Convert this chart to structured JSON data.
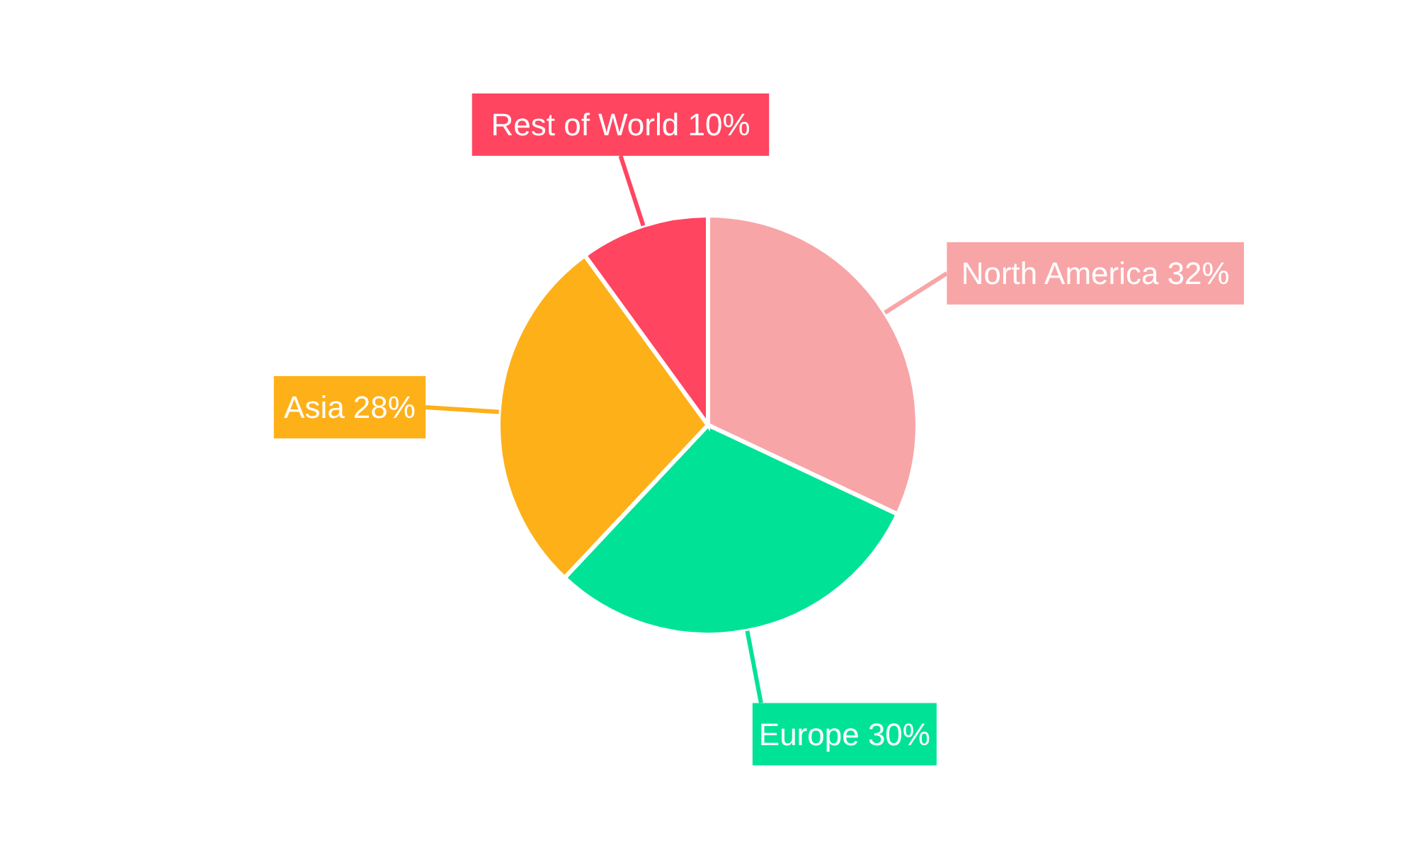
{
  "chart_data": {
    "type": "pie",
    "categories": [
      "North America",
      "Europe",
      "Asia",
      "Rest of World"
    ],
    "values": [
      32,
      30,
      28,
      10
    ],
    "value_labels": [
      "32%",
      "30%",
      "28%",
      "10%"
    ],
    "colors": [
      "#f8a5a7",
      "#00e396",
      "#feb019",
      "#ff4560"
    ]
  }
}
